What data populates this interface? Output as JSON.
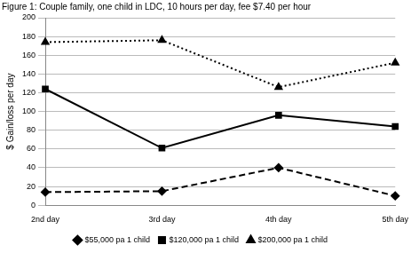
{
  "chart_data": {
    "type": "line",
    "title": "Figure 1: Couple family, one child in LDC, 10 hours per day, fee $7.40 per hour",
    "y_label": "$ Gain/loss per day",
    "categories": [
      "2nd day",
      "3rd day",
      "4th day",
      "5th day"
    ],
    "series": [
      {
        "name": "$55,000 pa 1 child",
        "color": "#000000",
        "marker": "diamond",
        "line_style": "dashed",
        "values": [
          14,
          15,
          40,
          10
        ]
      },
      {
        "name": "$120,000 pa 1 child",
        "color": "#000000",
        "marker": "square",
        "line_style": "solid",
        "values": [
          124,
          61,
          96,
          84
        ]
      },
      {
        "name": "$200,000 pa 1 child",
        "color": "#000000",
        "marker": "triangle",
        "line_style": "dotted",
        "values": [
          174,
          176,
          126,
          152
        ]
      }
    ],
    "ylim": [
      0,
      200
    ],
    "yticks": [
      0,
      20,
      40,
      60,
      80,
      100,
      120,
      140,
      160,
      180,
      200
    ],
    "grid": true,
    "legend": "bottom"
  }
}
